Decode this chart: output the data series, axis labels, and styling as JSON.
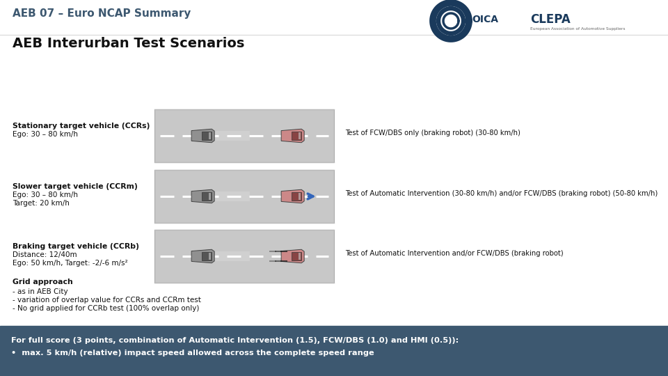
{
  "title_line1": "AEB 07 – Euro NCAP Summary",
  "title_line2": "AEB Interurban Test Scenarios",
  "footer_bg": "#3d5870",
  "footer_text_line1": "For full score (3 points, combination of Automatic Intervention (1.5), FCW/DBS (1.0) and HMI (0.5)):",
  "footer_text_line2": "•  max. 5 km/h (relative) impact speed allowed across the complete speed range",
  "scenarios": [
    {
      "title": "Stationary target vehicle (CCRs)",
      "subtitle": "Ego: 30 – 80 km/h",
      "subtitle2": null,
      "description": "Test of FCW/DBS only (braking robot) (30-80 km/h)",
      "arrow": false,
      "braking": false
    },
    {
      "title": "Slower target vehicle (CCRm)",
      "subtitle": "Ego: 30 – 80 km/h",
      "subtitle2": "Target: 20 km/h",
      "description": "Test of Automatic Intervention (30-80 km/h) and/or FCW/DBS (braking robot) (50-80 km/h)",
      "arrow": true,
      "braking": false
    },
    {
      "title": "Braking target vehicle (CCRb)",
      "subtitle": "Distance: 12/40m",
      "subtitle2": "Ego: 50 km/h, Target: -2/-6 m/s²",
      "description": "Test of Automatic Intervention and/or FCW/DBS (braking robot)",
      "arrow": false,
      "braking": true
    }
  ],
  "grid_title": "Grid approach",
  "grid_items": [
    "- as in AEB City",
    "- variation of overlap value for CCRs and CCRm test",
    "- No grid applied for CCRb test (100% overlap only)"
  ],
  "road_color": "#c8c8c8",
  "road_border_color": "#aaaaaa",
  "ego_car_body": "#909090",
  "ego_car_roof": "#555555",
  "target_car_body": "#cc8888",
  "target_car_roof": "#884444",
  "arrow_color": "#3366bb"
}
